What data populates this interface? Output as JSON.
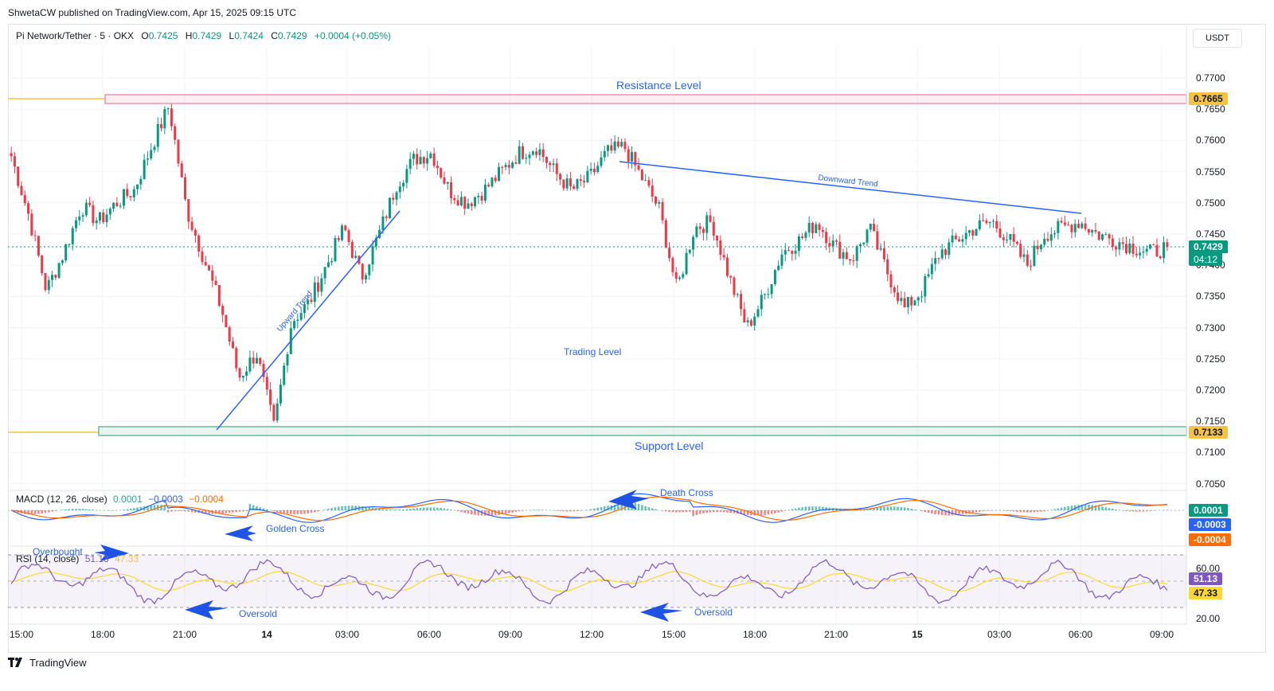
{
  "header": {
    "publisher_line": "ShwetaCW published on TradingView.com, Apr 15, 2025 09:15 UTC"
  },
  "legend": {
    "symbol": "Pi Network/Tether · 5 · OKX",
    "o_label": "O",
    "o_value": "0.7425",
    "h_label": "H",
    "h_value": "0.7429",
    "l_label": "L",
    "l_value": "0.7424",
    "c_label": "C",
    "c_value": "0.7429",
    "change": "+0.0004 (+0.05%)"
  },
  "currency": "USDT",
  "price_axis": {
    "ticks": [
      "0.7700",
      "0.7650",
      "0.7600",
      "0.7550",
      "0.7500",
      "0.7450",
      "0.7400",
      "0.7350",
      "0.7300",
      "0.7250",
      "0.7200",
      "0.7150",
      "0.7100",
      "0.7050"
    ],
    "resistance_tag": "0.7665",
    "support_tag": "0.7133",
    "last_price_tag": "0.7429",
    "countdown": "04:12"
  },
  "time_axis": {
    "ticks": [
      "15:00",
      "18:00",
      "21:00",
      "14",
      "03:00",
      "06:00",
      "09:00",
      "12:00",
      "15:00",
      "18:00",
      "21:00",
      "15",
      "03:00",
      "06:00",
      "09:00"
    ]
  },
  "annotations": {
    "resistance": "Resistance Level",
    "support": "Support Level",
    "trading": "Trading Level",
    "upward": "Upward Trend",
    "downward": "Downward Trend",
    "golden_cross": "Golden Cross",
    "death_cross": "Death Cross",
    "overbought": "Overbought",
    "oversold_1": "Oversold",
    "oversold_2": "Oversold"
  },
  "macd": {
    "label": "MACD (12, 26, close)",
    "hist": "0.0001",
    "macd": "−0.0003",
    "signal": "−0.0004",
    "tag_hist": "0.0001",
    "tag_macd": "-0.0003",
    "tag_signal": "-0.0004"
  },
  "rsi": {
    "label": "RSI (14, close)",
    "value": "51.13",
    "ma": "47.33",
    "axis_top": "60.00",
    "axis_bottom": "20.00",
    "tag_value": "51.13",
    "tag_ma": "47.33"
  },
  "footer": {
    "brand": "TradingView"
  },
  "colors": {
    "up": "#089981",
    "down": "#f23645",
    "trend_line": "#2962ff",
    "resistance_zone": "#f48fb1",
    "support_zone": "#66bb9a",
    "tag_yellow": "#f5c242",
    "macd_line": "#2962ff",
    "signal_line": "#ff6d00",
    "rsi_line": "#7e57c2",
    "rsi_ma": "#fdd835"
  },
  "chart_data": {
    "type": "candlestick",
    "series": [
      {
        "name": "Pi Network/Tether",
        "close": [
          0.7575,
          0.748,
          0.736,
          0.742,
          0.7495,
          0.747,
          0.75,
          0.752,
          0.759,
          0.7655,
          0.749,
          0.741,
          0.733,
          0.722,
          0.726,
          0.714,
          0.731,
          0.734,
          0.74,
          0.746,
          0.738,
          0.745,
          0.753,
          0.757,
          0.758,
          0.752,
          0.75,
          0.752,
          0.755,
          0.758,
          0.759,
          0.755,
          0.752,
          0.754,
          0.758,
          0.759,
          0.754,
          0.749,
          0.736,
          0.746,
          0.747,
          0.738,
          0.73,
          0.735,
          0.742,
          0.744,
          0.747,
          0.743,
          0.741,
          0.746,
          0.739,
          0.733,
          0.736,
          0.742,
          0.744,
          0.746,
          0.747,
          0.744,
          0.74,
          0.745,
          0.746,
          0.747,
          0.745,
          0.744,
          0.743,
          0.742,
          0.7429
        ]
      }
    ]
  }
}
